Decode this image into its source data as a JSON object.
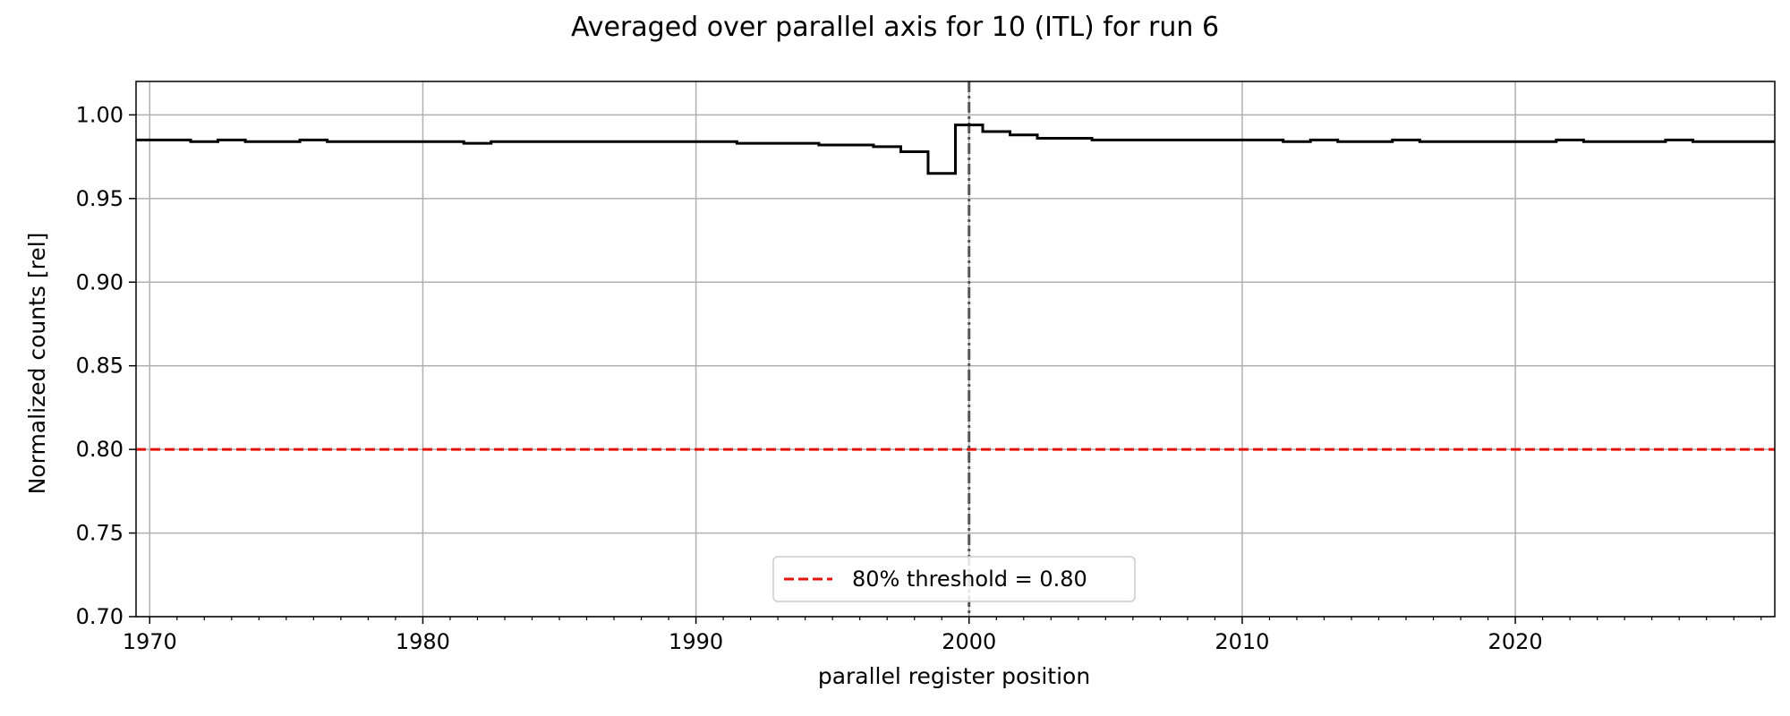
{
  "chart_data": {
    "type": "line",
    "title": "Averaged over parallel axis for 10 (ITL) for run 6",
    "xlabel": "parallel register position",
    "ylabel": "Normalized counts [rel]",
    "xlim": [
      1969.5,
      2029.5
    ],
    "ylim": [
      0.7,
      1.02
    ],
    "x_ticks": [
      1970,
      1980,
      1990,
      2000,
      2010,
      2020
    ],
    "x_tick_labels": [
      "1970",
      "1980",
      "1990",
      "2000",
      "2010",
      "2020"
    ],
    "y_ticks": [
      0.7,
      0.75,
      0.8,
      0.85,
      0.9,
      0.95,
      1.0
    ],
    "y_tick_labels": [
      "0.70",
      "0.75",
      "0.80",
      "0.85",
      "0.90",
      "0.95",
      "1.00"
    ],
    "grid": true,
    "step_where": "mid",
    "series": [
      {
        "color": "#000000",
        "style": "solid-step",
        "x": [
          1970,
          1971,
          1972,
          1973,
          1974,
          1975,
          1976,
          1977,
          1978,
          1979,
          1980,
          1981,
          1982,
          1983,
          1984,
          1985,
          1986,
          1987,
          1988,
          1989,
          1990,
          1991,
          1992,
          1993,
          1994,
          1995,
          1996,
          1997,
          1998,
          1999,
          2000,
          2001,
          2002,
          2003,
          2004,
          2005,
          2006,
          2007,
          2008,
          2009,
          2010,
          2011,
          2012,
          2013,
          2014,
          2015,
          2016,
          2017,
          2018,
          2019,
          2020,
          2021,
          2022,
          2023,
          2024,
          2025,
          2026,
          2027,
          2028,
          2029
        ],
        "y": [
          0.985,
          0.985,
          0.984,
          0.985,
          0.984,
          0.984,
          0.985,
          0.984,
          0.984,
          0.984,
          0.984,
          0.984,
          0.983,
          0.984,
          0.984,
          0.984,
          0.984,
          0.984,
          0.984,
          0.984,
          0.984,
          0.984,
          0.983,
          0.983,
          0.983,
          0.982,
          0.982,
          0.981,
          0.978,
          0.965,
          0.994,
          0.99,
          0.988,
          0.986,
          0.986,
          0.985,
          0.985,
          0.985,
          0.985,
          0.985,
          0.985,
          0.985,
          0.984,
          0.985,
          0.984,
          0.984,
          0.985,
          0.984,
          0.984,
          0.984,
          0.984,
          0.984,
          0.985,
          0.984,
          0.984,
          0.984,
          0.985,
          0.984,
          0.984,
          0.984
        ]
      }
    ],
    "threshold": {
      "label": "80% threshold = 0.80",
      "value": 0.8,
      "color": "#e8120c",
      "style": "dashed"
    },
    "vline": {
      "value": 2000,
      "color": "#555555",
      "style": "dash-dot"
    },
    "legend_position": "lower center"
  }
}
